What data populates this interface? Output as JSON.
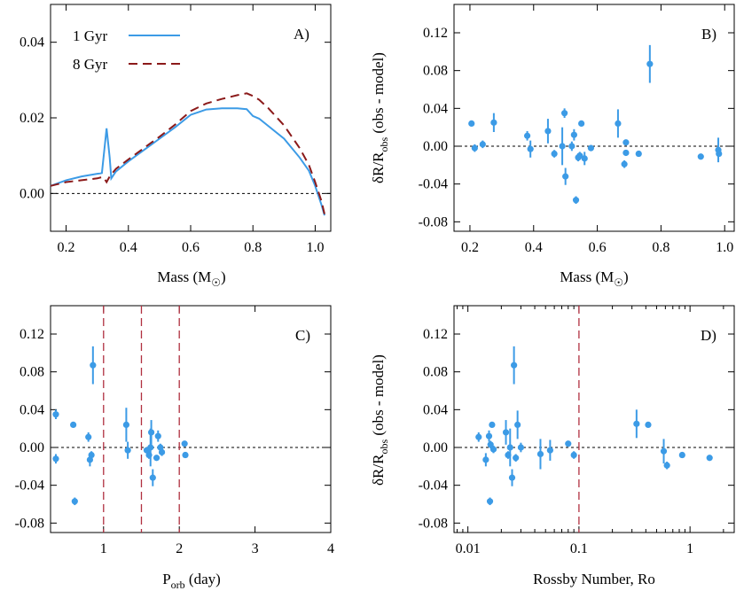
{
  "colors": {
    "blue": "#3c9be6",
    "darkred": "#8b1a1a",
    "red_dash": "#b03040"
  },
  "panels": {
    "A": {
      "tag": "A)",
      "xlabel_main": "Mass (M",
      "xlabel_sub": "☉",
      "xlabel_end": ")",
      "legend": [
        {
          "label": "1 Gyr"
        },
        {
          "label": "8 Gyr"
        }
      ]
    },
    "B": {
      "tag": "B)",
      "xlabel_main": "Mass (M",
      "xlabel_sub": "☉",
      "xlabel_end": ")",
      "ylabel_main": "δR/R",
      "ylabel_sub": "obs",
      "ylabel_end": " (obs - model)"
    },
    "C": {
      "tag": "C)",
      "xlabel_main": "P",
      "xlabel_sub": "orb",
      "xlabel_end": " (day)"
    },
    "D": {
      "tag": "D)",
      "xlabel_main": "Rossby Number, Ro",
      "ylabel_main": "δR/R",
      "ylabel_sub": "obs",
      "ylabel_end": " (obs - model)"
    }
  },
  "chart_data": [
    {
      "panel": "A",
      "type": "line",
      "xlabel": "Mass (M☉)",
      "ylabel": "",
      "xlim": [
        0.15,
        1.05
      ],
      "ylim": [
        -0.01,
        0.05
      ],
      "xticks": [
        "0.2",
        "0.4",
        "0.6",
        "0.8",
        "1.0"
      ],
      "xtick_values": [
        0.2,
        0.4,
        0.6,
        0.8,
        1.0
      ],
      "yticks": [
        "0.00",
        "0.02",
        "0.04"
      ],
      "ytick_values": [
        0.0,
        0.02,
        0.04
      ],
      "legend_position": "top-left",
      "series": [
        {
          "name": "1 Gyr",
          "style": "solid",
          "x": [
            0.15,
            0.2,
            0.25,
            0.3,
            0.31,
            0.315,
            0.33,
            0.34,
            0.345,
            0.36,
            0.4,
            0.45,
            0.5,
            0.55,
            0.6,
            0.65,
            0.7,
            0.75,
            0.78,
            0.8,
            0.82,
            0.85,
            0.9,
            0.95,
            0.98,
            1.0,
            1.02,
            1.03
          ],
          "y": [
            0.002,
            0.0035,
            0.0045,
            0.0052,
            0.0053,
            0.0054,
            0.0172,
            0.0095,
            0.004,
            0.0058,
            0.0085,
            0.0115,
            0.0145,
            0.0175,
            0.0208,
            0.0222,
            0.0225,
            0.0225,
            0.0223,
            0.0205,
            0.0198,
            0.0178,
            0.0145,
            0.0095,
            0.006,
            0.002,
            -0.003,
            -0.0058
          ]
        },
        {
          "name": "8 Gyr",
          "style": "dashed",
          "x": [
            0.15,
            0.2,
            0.25,
            0.3,
            0.31,
            0.32,
            0.33,
            0.34,
            0.36,
            0.4,
            0.45,
            0.5,
            0.55,
            0.6,
            0.65,
            0.7,
            0.75,
            0.78,
            0.8,
            0.82,
            0.85,
            0.9,
            0.95,
            0.98,
            1.0,
            1.02,
            1.03
          ],
          "y": [
            0.002,
            0.003,
            0.0035,
            0.004,
            0.0042,
            0.0043,
            0.003,
            0.0045,
            0.0065,
            0.009,
            0.012,
            0.015,
            0.0182,
            0.0218,
            0.0238,
            0.025,
            0.026,
            0.0265,
            0.0258,
            0.0248,
            0.0225,
            0.018,
            0.012,
            0.0075,
            0.003,
            -0.002,
            -0.0055
          ]
        }
      ]
    },
    {
      "panel": "B",
      "type": "scatter",
      "xlabel": "Mass (M☉)",
      "ylabel": "δR/Robs (obs - model)",
      "xlim": [
        0.15,
        1.03
      ],
      "ylim": [
        -0.09,
        0.15
      ],
      "xticks": [
        "0.2",
        "0.4",
        "0.6",
        "0.8",
        "1.0"
      ],
      "xtick_values": [
        0.2,
        0.4,
        0.6,
        0.8,
        1.0
      ],
      "yticks": [
        "-0.08",
        "-0.04",
        "0.00",
        "0.04",
        "0.08",
        "0.12"
      ],
      "ytick_values": [
        -0.08,
        -0.04,
        0.0,
        0.04,
        0.08,
        0.12
      ],
      "points": [
        {
          "x": 0.205,
          "y": 0.024,
          "err": 0.002
        },
        {
          "x": 0.215,
          "y": -0.002,
          "err": 0.004
        },
        {
          "x": 0.24,
          "y": 0.002,
          "err": 0.004
        },
        {
          "x": 0.275,
          "y": 0.025,
          "err": 0.01
        },
        {
          "x": 0.38,
          "y": 0.011,
          "err": 0.005
        },
        {
          "x": 0.39,
          "y": -0.003,
          "err": 0.009
        },
        {
          "x": 0.445,
          "y": 0.016,
          "err": 0.013
        },
        {
          "x": 0.465,
          "y": -0.008,
          "err": 0.004
        },
        {
          "x": 0.49,
          "y": 0.0,
          "err": 0.02
        },
        {
          "x": 0.497,
          "y": 0.035,
          "err": 0.005
        },
        {
          "x": 0.5,
          "y": -0.032,
          "err": 0.009
        },
        {
          "x": 0.52,
          "y": 0.0,
          "err": 0.005
        },
        {
          "x": 0.527,
          "y": 0.012,
          "err": 0.006
        },
        {
          "x": 0.533,
          "y": -0.057,
          "err": 0.004
        },
        {
          "x": 0.54,
          "y": -0.012,
          "err": 0.004
        },
        {
          "x": 0.545,
          "y": -0.01,
          "err": 0.004
        },
        {
          "x": 0.55,
          "y": 0.024,
          "err": 0.002
        },
        {
          "x": 0.56,
          "y": -0.013,
          "err": 0.007
        },
        {
          "x": 0.58,
          "y": -0.002,
          "err": 0.003
        },
        {
          "x": 0.665,
          "y": 0.024,
          "err": 0.015
        },
        {
          "x": 0.685,
          "y": -0.019,
          "err": 0.004
        },
        {
          "x": 0.69,
          "y": -0.007,
          "err": 0.003
        },
        {
          "x": 0.69,
          "y": 0.004,
          "err": 0.003
        },
        {
          "x": 0.73,
          "y": -0.008,
          "err": 0.003
        },
        {
          "x": 0.765,
          "y": 0.087,
          "err": 0.02
        },
        {
          "x": 0.925,
          "y": -0.011,
          "err": 0.003
        },
        {
          "x": 0.98,
          "y": -0.004,
          "err": 0.013
        },
        {
          "x": 0.982,
          "y": -0.008,
          "err": 0.003
        }
      ]
    },
    {
      "panel": "C",
      "type": "scatter",
      "xlabel": "Porb (day)",
      "ylabel": "",
      "xlim": [
        0.3,
        4.0
      ],
      "ylim": [
        -0.09,
        0.15
      ],
      "xticks": [
        "1",
        "2",
        "3",
        "4"
      ],
      "xtick_values": [
        1,
        2,
        3,
        4
      ],
      "yticks": [
        "-0.08",
        "-0.04",
        "0.00",
        "0.04",
        "0.08",
        "0.12"
      ],
      "ytick_values": [
        -0.08,
        -0.04,
        0.0,
        0.04,
        0.08,
        0.12
      ],
      "vlines": [
        1.0,
        1.5,
        2.0
      ],
      "points": [
        {
          "x": 0.37,
          "y": 0.035,
          "err": 0.005
        },
        {
          "x": 0.37,
          "y": -0.012,
          "err": 0.005
        },
        {
          "x": 0.6,
          "y": 0.024,
          "err": 0.002
        },
        {
          "x": 0.62,
          "y": -0.057,
          "err": 0.004
        },
        {
          "x": 0.8,
          "y": 0.011,
          "err": 0.005
        },
        {
          "x": 0.82,
          "y": -0.013,
          "err": 0.007
        },
        {
          "x": 0.84,
          "y": -0.008,
          "err": 0.004
        },
        {
          "x": 0.86,
          "y": 0.087,
          "err": 0.02
        },
        {
          "x": 1.3,
          "y": 0.024,
          "err": 0.018
        },
        {
          "x": 1.32,
          "y": -0.003,
          "err": 0.009
        },
        {
          "x": 1.57,
          "y": -0.003,
          "err": 0.003
        },
        {
          "x": 1.6,
          "y": -0.008,
          "err": 0.004
        },
        {
          "x": 1.62,
          "y": 0.0,
          "err": 0.02
        },
        {
          "x": 1.63,
          "y": 0.016,
          "err": 0.013
        },
        {
          "x": 1.65,
          "y": -0.032,
          "err": 0.009
        },
        {
          "x": 1.7,
          "y": -0.011,
          "err": 0.003
        },
        {
          "x": 1.72,
          "y": 0.012,
          "err": 0.006
        },
        {
          "x": 1.75,
          "y": 0.0,
          "err": 0.004
        },
        {
          "x": 1.77,
          "y": -0.005,
          "err": 0.004
        },
        {
          "x": 2.07,
          "y": 0.004,
          "err": 0.003
        },
        {
          "x": 2.08,
          "y": -0.008,
          "err": 0.003
        }
      ]
    },
    {
      "panel": "D",
      "type": "scatter",
      "xlabel": "Rossby Number, Ro",
      "ylabel": "δR/Robs (obs - model)",
      "xscale": "log",
      "xlim": [
        0.0075,
        2.5
      ],
      "ylim": [
        -0.09,
        0.15
      ],
      "xticks": [
        "0.01",
        "0.1",
        "1"
      ],
      "xtick_values": [
        0.01,
        0.1,
        1
      ],
      "yticks": [
        "-0.08",
        "-0.04",
        "0.00",
        "0.04",
        "0.08",
        "0.12"
      ],
      "ytick_values": [
        -0.08,
        -0.04,
        0.0,
        0.04,
        0.08,
        0.12
      ],
      "vlines": [
        0.1
      ],
      "points": [
        {
          "x": 0.0125,
          "y": 0.011,
          "err": 0.005
        },
        {
          "x": 0.0145,
          "y": -0.013,
          "err": 0.007
        },
        {
          "x": 0.0155,
          "y": 0.012,
          "err": 0.006
        },
        {
          "x": 0.0158,
          "y": -0.057,
          "err": 0.004
        },
        {
          "x": 0.016,
          "y": 0.003,
          "err": 0.004
        },
        {
          "x": 0.0165,
          "y": 0.024,
          "err": 0.002
        },
        {
          "x": 0.017,
          "y": -0.002,
          "err": 0.004
        },
        {
          "x": 0.022,
          "y": 0.016,
          "err": 0.013
        },
        {
          "x": 0.023,
          "y": -0.008,
          "err": 0.004
        },
        {
          "x": 0.024,
          "y": 0.0,
          "err": 0.02
        },
        {
          "x": 0.025,
          "y": -0.032,
          "err": 0.009
        },
        {
          "x": 0.026,
          "y": 0.087,
          "err": 0.02
        },
        {
          "x": 0.027,
          "y": -0.011,
          "err": 0.004
        },
        {
          "x": 0.028,
          "y": 0.024,
          "err": 0.015
        },
        {
          "x": 0.03,
          "y": 0.0,
          "err": 0.005
        },
        {
          "x": 0.045,
          "y": -0.007,
          "err": 0.016
        },
        {
          "x": 0.055,
          "y": -0.003,
          "err": 0.011
        },
        {
          "x": 0.08,
          "y": 0.004,
          "err": 0.003
        },
        {
          "x": 0.09,
          "y": -0.008,
          "err": 0.004
        },
        {
          "x": 0.33,
          "y": 0.025,
          "err": 0.015
        },
        {
          "x": 0.42,
          "y": 0.024,
          "err": 0.002
        },
        {
          "x": 0.58,
          "y": -0.004,
          "err": 0.013
        },
        {
          "x": 0.62,
          "y": -0.019,
          "err": 0.004
        },
        {
          "x": 0.85,
          "y": -0.008,
          "err": 0.003
        },
        {
          "x": 1.5,
          "y": -0.011,
          "err": 0.003
        }
      ]
    }
  ]
}
